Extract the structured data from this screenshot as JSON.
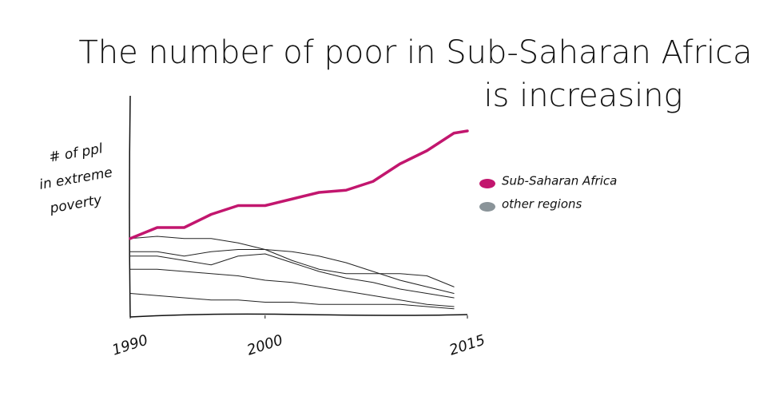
{
  "chart_data": {
    "type": "line",
    "title": [
      "The number of poor in Sub-Saharan Africa",
      "is increasing"
    ],
    "y_label": [
      "# of ppl",
      "in extreme",
      "poverty"
    ],
    "x": [
      1990,
      1992,
      1994,
      1996,
      1998,
      2000,
      2002,
      2004,
      2006,
      2008,
      2010,
      2012,
      2014,
      2015
    ],
    "xlim": [
      1990,
      2015
    ],
    "xticks": [
      1990,
      2000,
      2015
    ],
    "ylim": [
      0,
      100
    ],
    "series": [
      {
        "name": "Sub-Saharan Africa",
        "color": "#c2166e",
        "values": [
          35,
          40,
          40,
          46,
          50,
          50,
          53,
          56,
          57,
          61,
          69,
          75,
          83,
          84
        ]
      },
      {
        "name": "other regions",
        "color": "#8a9499",
        "line_color": "#222222",
        "lines": [
          [
            35,
            36,
            35,
            35,
            33,
            30,
            29,
            27,
            24,
            20,
            16,
            13,
            10,
            null
          ],
          [
            29,
            29,
            27,
            29,
            30,
            30,
            25,
            21,
            19,
            19,
            19,
            18,
            13,
            null
          ],
          [
            27,
            27,
            25,
            23,
            27,
            28,
            24,
            20,
            17,
            15,
            12,
            10,
            8,
            null
          ],
          [
            21,
            21,
            20,
            19,
            18,
            16,
            15,
            13,
            11,
            9,
            7,
            5,
            4,
            null
          ],
          [
            10,
            9,
            8,
            7,
            7,
            6,
            6,
            5,
            5,
            5,
            5,
            4,
            3,
            null
          ]
        ]
      }
    ]
  }
}
